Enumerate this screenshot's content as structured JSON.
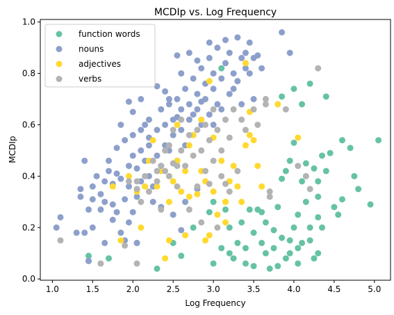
{
  "chart_data": {
    "type": "scatter",
    "title": "MCDIp vs. Log Frequency",
    "xlabel": "Log Frequency",
    "ylabel": "MCDIp",
    "xlim": [
      0.85,
      5.2
    ],
    "ylim": [
      -0.005,
      1.01
    ],
    "xticks": [
      "1.0",
      "1.5",
      "2.0",
      "2.5",
      "3.0",
      "3.5",
      "4.0",
      "4.5",
      "5.0"
    ],
    "yticks": [
      "0.0",
      "0.2",
      "0.4",
      "0.6",
      "0.8",
      "1.0"
    ],
    "grid": false,
    "legend_position": "top-left",
    "series": [
      {
        "name": "function words",
        "color": "#66c2a5",
        "points": [
          [
            1.45,
            0.09
          ],
          [
            1.7,
            0.08
          ],
          [
            2.05,
            0.14
          ],
          [
            2.3,
            0.04
          ],
          [
            2.5,
            0.14
          ],
          [
            2.6,
            0.09
          ],
          [
            2.75,
            0.2
          ],
          [
            2.95,
            0.26
          ],
          [
            3.0,
            0.06
          ],
          [
            3.0,
            0.3
          ],
          [
            3.1,
            0.12
          ],
          [
            3.15,
            0.27
          ],
          [
            3.2,
            0.1
          ],
          [
            3.2,
            0.2
          ],
          [
            3.25,
            0.08
          ],
          [
            3.3,
            0.14
          ],
          [
            3.35,
            0.22
          ],
          [
            3.4,
            0.06
          ],
          [
            3.4,
            0.12
          ],
          [
            3.45,
            0.27
          ],
          [
            3.5,
            0.05
          ],
          [
            3.5,
            0.18
          ],
          [
            3.55,
            0.27
          ],
          [
            3.6,
            0.14
          ],
          [
            3.6,
            0.26
          ],
          [
            3.65,
            0.1
          ],
          [
            3.65,
            0.22
          ],
          [
            3.7,
            0.04
          ],
          [
            3.75,
            0.12
          ],
          [
            3.75,
            0.19
          ],
          [
            3.8,
            0.05
          ],
          [
            3.8,
            0.28
          ],
          [
            3.85,
            0.16
          ],
          [
            3.85,
            0.39
          ],
          [
            3.9,
            0.08
          ],
          [
            3.95,
            0.1
          ],
          [
            3.95,
            0.15
          ],
          [
            3.95,
            0.46
          ],
          [
            4.0,
            0.2
          ],
          [
            4.0,
            0.53
          ],
          [
            4.05,
            0.06
          ],
          [
            4.05,
            0.25
          ],
          [
            4.1,
            0.14
          ],
          [
            4.1,
            0.38
          ],
          [
            4.15,
            0.3
          ],
          [
            4.2,
            0.15
          ],
          [
            4.2,
            0.2
          ],
          [
            4.25,
            0.08
          ],
          [
            4.25,
            0.43
          ],
          [
            4.3,
            0.1
          ],
          [
            4.3,
            0.24
          ],
          [
            4.35,
            0.2
          ],
          [
            4.35,
            0.48
          ],
          [
            4.4,
            0.42
          ],
          [
            4.45,
            0.49
          ],
          [
            4.5,
            0.28
          ],
          [
            4.55,
            0.25
          ],
          [
            4.6,
            0.31
          ],
          [
            4.6,
            0.54
          ],
          [
            4.7,
            0.51
          ],
          [
            4.75,
            0.4
          ],
          [
            4.8,
            0.35
          ],
          [
            4.95,
            0.29
          ],
          [
            5.05,
            0.54
          ],
          [
            4.0,
            0.74
          ],
          [
            4.2,
            0.76
          ],
          [
            4.4,
            0.71
          ],
          [
            3.85,
            0.71
          ],
          [
            3.1,
            0.82
          ],
          [
            4.1,
            0.68
          ],
          [
            4.3,
            0.38
          ],
          [
            3.9,
            0.42
          ],
          [
            4.05,
            0.12
          ],
          [
            4.3,
            0.32
          ],
          [
            4.15,
            0.45
          ]
        ]
      },
      {
        "name": "nouns",
        "color": "#8da0cb",
        "points": [
          [
            1.05,
            0.2
          ],
          [
            1.1,
            0.24
          ],
          [
            1.35,
            0.35
          ],
          [
            1.35,
            0.32
          ],
          [
            1.4,
            0.18
          ],
          [
            1.4,
            0.46
          ],
          [
            1.45,
            0.07
          ],
          [
            1.45,
            0.27
          ],
          [
            1.5,
            0.36
          ],
          [
            1.5,
            0.31
          ],
          [
            1.55,
            0.4
          ],
          [
            1.6,
            0.33
          ],
          [
            1.6,
            0.27
          ],
          [
            1.65,
            0.3
          ],
          [
            1.65,
            0.38
          ],
          [
            1.7,
            0.42
          ],
          [
            1.7,
            0.46
          ],
          [
            1.75,
            0.29
          ],
          [
            1.75,
            0.37
          ],
          [
            1.75,
            0.23
          ],
          [
            1.8,
            0.41
          ],
          [
            1.8,
            0.51
          ],
          [
            1.85,
            0.6
          ],
          [
            1.85,
            0.18
          ],
          [
            1.85,
            0.39
          ],
          [
            1.9,
            0.31
          ],
          [
            1.9,
            0.54
          ],
          [
            1.95,
            0.36
          ],
          [
            1.95,
            0.44
          ],
          [
            2.0,
            0.26
          ],
          [
            2.0,
            0.48
          ],
          [
            2.0,
            0.56
          ],
          [
            2.05,
            0.32
          ],
          [
            2.05,
            0.43
          ],
          [
            2.1,
            0.38
          ],
          [
            2.1,
            0.5
          ],
          [
            2.1,
            0.58
          ],
          [
            2.15,
            0.46
          ],
          [
            2.2,
            0.4
          ],
          [
            2.2,
            0.52
          ],
          [
            2.2,
            0.62
          ],
          [
            2.25,
            0.36
          ],
          [
            2.3,
            0.48
          ],
          [
            2.3,
            0.58
          ],
          [
            2.35,
            0.44
          ],
          [
            2.35,
            0.66
          ],
          [
            2.4,
            0.52
          ],
          [
            2.4,
            0.6
          ],
          [
            2.45,
            0.5
          ],
          [
            2.45,
            0.68
          ],
          [
            2.5,
            0.56
          ],
          [
            2.5,
            0.62
          ],
          [
            2.55,
            0.46
          ],
          [
            2.55,
            0.7
          ],
          [
            2.6,
            0.58
          ],
          [
            2.6,
            0.66
          ],
          [
            2.65,
            0.52
          ],
          [
            2.65,
            0.74
          ],
          [
            2.7,
            0.62
          ],
          [
            2.7,
            0.68
          ],
          [
            2.75,
            0.56
          ],
          [
            2.75,
            0.78
          ],
          [
            2.8,
            0.66
          ],
          [
            2.8,
            0.72
          ],
          [
            2.85,
            0.6
          ],
          [
            2.85,
            0.82
          ],
          [
            2.9,
            0.7
          ],
          [
            2.9,
            0.76
          ],
          [
            2.95,
            0.64
          ],
          [
            2.95,
            0.86
          ],
          [
            3.0,
            0.74
          ],
          [
            3.0,
            0.8
          ],
          [
            3.05,
            0.68
          ],
          [
            3.05,
            0.9
          ],
          [
            3.1,
            0.78
          ],
          [
            3.15,
            0.84
          ],
          [
            3.2,
            0.72
          ],
          [
            3.2,
            0.88
          ],
          [
            3.25,
            0.8
          ],
          [
            3.3,
            0.94
          ],
          [
            3.35,
            0.86
          ],
          [
            3.4,
            0.82
          ],
          [
            3.45,
            0.92
          ],
          [
            3.5,
            0.86
          ],
          [
            3.85,
            0.96
          ],
          [
            3.95,
            0.88
          ],
          [
            1.95,
            0.69
          ],
          [
            2.1,
            0.7
          ],
          [
            2.3,
            0.75
          ],
          [
            2.55,
            0.87
          ],
          [
            2.7,
            0.88
          ],
          [
            2.95,
            0.92
          ],
          [
            3.15,
            0.93
          ],
          [
            3.3,
            0.77
          ],
          [
            3.5,
            0.7
          ],
          [
            3.45,
            0.8
          ],
          [
            2.0,
            0.65
          ],
          [
            2.2,
            0.55
          ],
          [
            2.4,
            0.73
          ],
          [
            2.6,
            0.8
          ],
          [
            2.8,
            0.85
          ],
          [
            3.0,
            0.6
          ],
          [
            3.1,
            0.66
          ],
          [
            3.25,
            0.74
          ],
          [
            3.4,
            0.88
          ],
          [
            1.5,
            0.2
          ],
          [
            1.9,
            0.15
          ],
          [
            2.05,
            0.14
          ],
          [
            2.35,
            0.28
          ],
          [
            2.5,
            0.25
          ],
          [
            2.65,
            0.3
          ],
          [
            2.8,
            0.35
          ],
          [
            1.3,
            0.18
          ],
          [
            1.65,
            0.14
          ],
          [
            1.8,
            0.26
          ],
          [
            2.6,
            0.19
          ],
          [
            1.45,
            0.07
          ],
          [
            3.55,
            0.87
          ],
          [
            3.6,
            0.82
          ],
          [
            2.75,
            0.64
          ],
          [
            2.45,
            0.7
          ],
          [
            2.85,
            0.69
          ],
          [
            3.35,
            0.68
          ],
          [
            2.25,
            0.3
          ],
          [
            1.95,
            0.22
          ],
          [
            2.15,
            0.6
          ],
          [
            2.55,
            0.63
          ]
        ]
      },
      {
        "name": "adjectives",
        "color": "#ffd92f",
        "points": [
          [
            1.75,
            0.36
          ],
          [
            1.85,
            0.15
          ],
          [
            1.95,
            0.4
          ],
          [
            2.05,
            0.34
          ],
          [
            2.1,
            0.2
          ],
          [
            2.15,
            0.36
          ],
          [
            2.2,
            0.46
          ],
          [
            2.25,
            0.54
          ],
          [
            2.3,
            0.36
          ],
          [
            2.35,
            0.42
          ],
          [
            2.4,
            0.08
          ],
          [
            2.45,
            0.3
          ],
          [
            2.45,
            0.15
          ],
          [
            2.5,
            0.38
          ],
          [
            2.55,
            0.46
          ],
          [
            2.55,
            0.6
          ],
          [
            2.6,
            0.34
          ],
          [
            2.65,
            0.42
          ],
          [
            2.7,
            0.32
          ],
          [
            2.7,
            0.52
          ],
          [
            2.75,
            0.56
          ],
          [
            2.8,
            0.33
          ],
          [
            2.85,
            0.42
          ],
          [
            2.9,
            0.38
          ],
          [
            2.9,
            0.15
          ],
          [
            2.95,
            0.17
          ],
          [
            3.0,
            0.55
          ],
          [
            3.0,
            0.34
          ],
          [
            3.05,
            0.25
          ],
          [
            3.1,
            0.46
          ],
          [
            3.15,
            0.3
          ],
          [
            3.15,
            0.22
          ],
          [
            3.2,
            0.38
          ],
          [
            3.25,
            0.44
          ],
          [
            3.3,
            0.36
          ],
          [
            3.35,
            0.3
          ],
          [
            3.4,
            0.52
          ],
          [
            3.45,
            0.56
          ],
          [
            3.5,
            0.54
          ],
          [
            3.55,
            0.44
          ],
          [
            3.6,
            0.36
          ],
          [
            3.8,
            0.68
          ],
          [
            4.05,
            0.55
          ],
          [
            2.85,
            0.62
          ],
          [
            2.95,
            0.77
          ],
          [
            3.45,
            0.65
          ],
          [
            3.15,
            0.3
          ],
          [
            2.65,
            0.17
          ],
          [
            3.4,
            0.84
          ]
        ]
      },
      {
        "name": "verbs",
        "color": "#b3b3b3",
        "points": [
          [
            1.1,
            0.15
          ],
          [
            1.6,
            0.06
          ],
          [
            1.9,
            0.13
          ],
          [
            1.95,
            0.38
          ],
          [
            2.05,
            0.35
          ],
          [
            2.05,
            0.06
          ],
          [
            2.1,
            0.3
          ],
          [
            2.15,
            0.4
          ],
          [
            2.2,
            0.34
          ],
          [
            2.25,
            0.46
          ],
          [
            2.3,
            0.38
          ],
          [
            2.35,
            0.44
          ],
          [
            2.35,
            0.27
          ],
          [
            2.4,
            0.5
          ],
          [
            2.45,
            0.4
          ],
          [
            2.45,
            0.52
          ],
          [
            2.5,
            0.45
          ],
          [
            2.5,
            0.58
          ],
          [
            2.55,
            0.36
          ],
          [
            2.6,
            0.5
          ],
          [
            2.6,
            0.62
          ],
          [
            2.65,
            0.44
          ],
          [
            2.7,
            0.56
          ],
          [
            2.7,
            0.27
          ],
          [
            2.75,
            0.48
          ],
          [
            2.8,
            0.58
          ],
          [
            2.8,
            0.36
          ],
          [
            2.85,
            0.5
          ],
          [
            2.9,
            0.6
          ],
          [
            2.9,
            0.42
          ],
          [
            2.95,
            0.54
          ],
          [
            2.95,
            0.37
          ],
          [
            3.0,
            0.46
          ],
          [
            3.0,
            0.66
          ],
          [
            3.05,
            0.58
          ],
          [
            3.1,
            0.5
          ],
          [
            3.1,
            0.4
          ],
          [
            3.15,
            0.62
          ],
          [
            3.2,
            0.55
          ],
          [
            3.2,
            0.34
          ],
          [
            3.25,
            0.66
          ],
          [
            3.3,
            0.42
          ],
          [
            3.35,
            0.62
          ],
          [
            3.4,
            0.58
          ],
          [
            3.5,
            0.66
          ],
          [
            3.55,
            0.6
          ],
          [
            3.65,
            0.68
          ],
          [
            3.7,
            0.34
          ],
          [
            3.7,
            0.32
          ],
          [
            3.9,
            0.66
          ],
          [
            4.05,
            0.44
          ],
          [
            4.15,
            0.4
          ],
          [
            4.2,
            0.35
          ],
          [
            4.3,
            0.82
          ],
          [
            3.65,
            0.7
          ],
          [
            2.55,
            0.44
          ],
          [
            2.4,
            0.42
          ],
          [
            2.85,
            0.22
          ],
          [
            3.05,
            0.2
          ],
          [
            3.15,
            0.37
          ],
          [
            2.3,
            0.42
          ],
          [
            2.05,
            0.38
          ]
        ]
      }
    ]
  }
}
